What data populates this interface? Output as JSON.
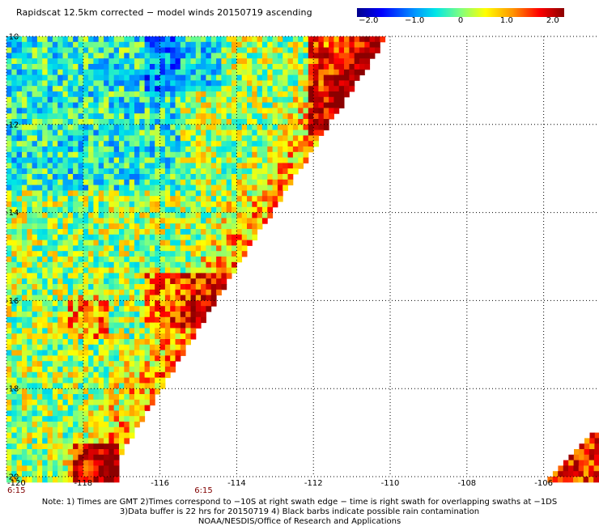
{
  "title": "Rapidscat 12.5km corrected − model winds 20150719 ascending",
  "colorbar": {
    "tick_labels": [
      "−2.0",
      "−1.0",
      "0",
      "1.0",
      "2.0"
    ],
    "tick_values": [
      -2.0,
      -1.0,
      0,
      1.0,
      2.0
    ],
    "range": [
      -2.25,
      2.25
    ]
  },
  "map": {
    "lon_range": [
      -120,
      -104.6
    ],
    "lat_range": [
      -20,
      -10
    ],
    "lon_ticks": [
      -120,
      -118,
      -116,
      -114,
      -112,
      -110,
      -108,
      -106
    ],
    "lon_tick_labels": [
      "-120",
      "-118",
      "-116",
      "-114",
      "-112",
      "-110",
      "-108",
      "-106"
    ],
    "lat_ticks": [
      -10,
      -12,
      -14,
      -16,
      -18,
      -20
    ],
    "lat_tick_labels": [
      "-10",
      "-12",
      "-14",
      "-16",
      "-18",
      "-20"
    ],
    "time_labels": [
      {
        "text": "6:15",
        "lon": -120
      },
      {
        "text": "6:15",
        "lon": -115.1
      }
    ],
    "swath_right_edge": [
      [
        -110.2,
        -10
      ],
      [
        -113.8,
        -14.8
      ],
      [
        -117.2,
        -19.6
      ]
    ],
    "swath2_corner": [
      [
        -104.8,
        -19.0
      ],
      [
        -104.8,
        -20
      ],
      [
        -105.9,
        -20
      ]
    ],
    "grid_style": "dotted"
  },
  "footer": {
    "line1": "Note: 1) Times are GMT 2)Times correspond to −10S at right swath edge − time is right swath for overlapping swaths at −1DS",
    "line2": "3)Data buffer is 22 hrs for 20150719 4) Black barbs indicate possible rain contamination",
    "line3": "NOAA/NESDIS/Office of Research and Applications"
  },
  "colors": {
    "blue": "#0000c8",
    "cyan": "#00e6e6",
    "yellow": "#ffff00",
    "orange": "#ff8c00",
    "red": "#e60000",
    "dark_red": "#8b0000",
    "time_label": "#800000"
  }
}
